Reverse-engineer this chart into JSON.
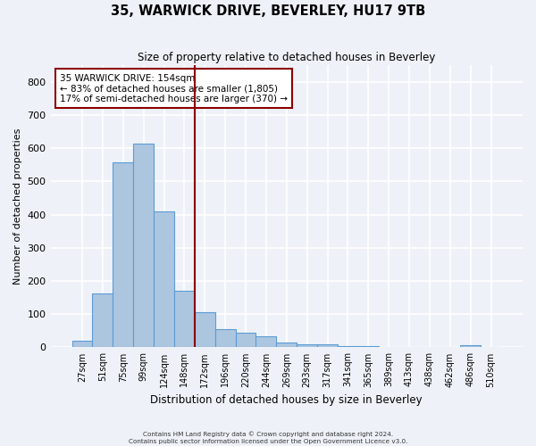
{
  "title_line1": "35, WARWICK DRIVE, BEVERLEY, HU17 9TB",
  "title_line2": "Size of property relative to detached houses in Beverley",
  "xlabel": "Distribution of detached houses by size in Beverley",
  "ylabel": "Number of detached properties",
  "footer": "Contains HM Land Registry data © Crown copyright and database right 2024.\nContains public sector information licensed under the Open Government Licence v3.0.",
  "bin_labels": [
    "27sqm",
    "51sqm",
    "75sqm",
    "99sqm",
    "124sqm",
    "148sqm",
    "172sqm",
    "196sqm",
    "220sqm",
    "244sqm",
    "269sqm",
    "293sqm",
    "317sqm",
    "341sqm",
    "365sqm",
    "389sqm",
    "413sqm",
    "438sqm",
    "462sqm",
    "486sqm",
    "510sqm"
  ],
  "bar_values": [
    20,
    163,
    557,
    614,
    410,
    170,
    105,
    55,
    44,
    33,
    15,
    10,
    9,
    5,
    4,
    1,
    0,
    0,
    0,
    7,
    0
  ],
  "bar_color": "#adc6e0",
  "bar_edge_color": "#5b9bd5",
  "vline_x": 5.5,
  "vline_color": "#8b0000",
  "annotation_text": "35 WARWICK DRIVE: 154sqm\n← 83% of detached houses are smaller (1,805)\n17% of semi-detached houses are larger (370) →",
  "annotation_box_color": "#ffffff",
  "annotation_box_edge": "#8b0000",
  "ylim": [
    0,
    850
  ],
  "yticks": [
    0,
    100,
    200,
    300,
    400,
    500,
    600,
    700,
    800
  ],
  "background_color": "#eef2f8",
  "grid_color": "#ffffff"
}
